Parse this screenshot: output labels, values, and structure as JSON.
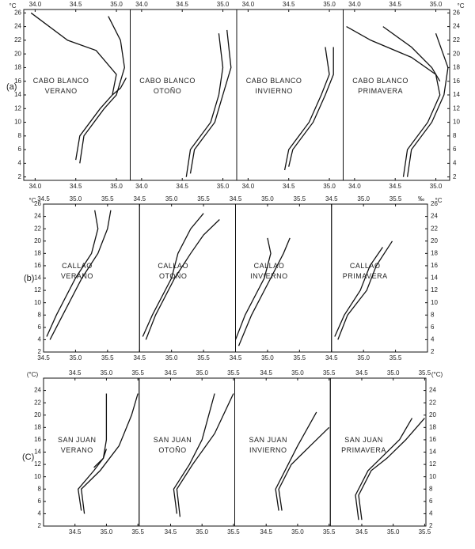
{
  "row_labels": [
    "(a)",
    "(b)",
    "(C)"
  ],
  "chart_data": [
    {
      "type": "line",
      "title": "CABO BLANCO",
      "subtitle": "VERANO",
      "ylabel": "°C",
      "xlim": [
        33.86,
        35.17
      ],
      "ylim": [
        1.5,
        26.5
      ],
      "xticks": [
        {
          "value": 34,
          "label": "34.0"
        },
        34.5,
        {
          "value": 35,
          "label": "35.0"
        }
      ],
      "yticks": [
        2,
        4,
        6,
        8,
        10,
        12,
        14,
        16,
        18,
        20,
        22,
        24,
        26
      ],
      "series": [
        {
          "color": "#111",
          "x": [
            34.5,
            34.55,
            34.8,
            34.95,
            35.0,
            34.75,
            34.4,
            33.95
          ],
          "values": [
            4.5,
            8,
            12,
            14,
            17,
            20.5,
            22,
            26
          ]
        },
        {
          "color": "#111",
          "x": [
            34.55,
            34.6,
            34.85,
            35.0,
            35.1,
            35.05,
            34.9
          ],
          "values": [
            4,
            8,
            12,
            14,
            18,
            22,
            25.5
          ]
        },
        {
          "color": "#111",
          "x": [
            34.95,
            35.05,
            35.12
          ],
          "values": [
            14,
            15,
            16.5
          ]
        }
      ]
    },
    {
      "type": "line",
      "title": "CABO BLANCO",
      "subtitle": "OTOÑO",
      "xlim": [
        33.86,
        35.17
      ],
      "ylim": [
        1.5,
        26.5
      ],
      "xticks": [
        {
          "value": 34,
          "label": "34.0"
        },
        34.5,
        {
          "value": 35,
          "label": "35.0"
        }
      ],
      "series": [
        {
          "color": "#111",
          "x": [
            34.55,
            34.6,
            34.85,
            34.95,
            35.0,
            34.95
          ],
          "values": [
            2,
            6,
            10,
            14,
            18,
            23
          ]
        },
        {
          "color": "#111",
          "x": [
            34.6,
            34.65,
            34.9,
            35.0,
            35.1,
            35.05
          ],
          "values": [
            2.5,
            6,
            10,
            14,
            18,
            23.5
          ]
        }
      ]
    },
    {
      "type": "line",
      "title": "CABO BLANCO",
      "subtitle": "INVIERNO",
      "xlim": [
        33.86,
        35.17
      ],
      "ylim": [
        1.5,
        26.5
      ],
      "xticks": [
        {
          "value": 34,
          "label": "34.0"
        },
        34.5,
        {
          "value": 35,
          "label": "35.0"
        }
      ],
      "series": [
        {
          "color": "#111",
          "x": [
            34.45,
            34.5,
            34.75,
            34.9,
            35.0,
            34.95
          ],
          "values": [
            3,
            6,
            10,
            14,
            17,
            21
          ]
        },
        {
          "color": "#111",
          "x": [
            34.5,
            34.55,
            34.8,
            34.95,
            35.05,
            35.05
          ],
          "values": [
            3.5,
            6,
            10,
            14,
            17,
            21
          ]
        }
      ]
    },
    {
      "type": "line",
      "title": "CABO BLANCO",
      "subtitle": "PRIMAVERA",
      "ylabel": "°C",
      "xlim": [
        33.86,
        35.17
      ],
      "ylim": [
        1.5,
        26.5
      ],
      "xticks": [
        {
          "value": 34,
          "label": "34.0"
        },
        34.5,
        {
          "value": 35,
          "label": "35.0"
        }
      ],
      "yticks": [
        2,
        4,
        6,
        8,
        10,
        12,
        14,
        16,
        18,
        20,
        22,
        24,
        26
      ],
      "series": [
        {
          "color": "#111",
          "x": [
            34.6,
            34.65,
            34.9,
            35.05,
            35.0,
            34.7,
            34.2,
            33.9
          ],
          "values": [
            2,
            6,
            10,
            14,
            17,
            19.5,
            22,
            24
          ]
        },
        {
          "color": "#111",
          "x": [
            34.65,
            34.7,
            34.95,
            35.1,
            35.15,
            35.0
          ],
          "values": [
            2,
            6,
            10,
            14,
            18,
            23
          ]
        },
        {
          "color": "#111",
          "x": [
            34.35,
            34.7,
            34.95,
            35.05
          ],
          "values": [
            24,
            21,
            18,
            16
          ]
        }
      ]
    },
    {
      "type": "line",
      "title": "CALLAO",
      "subtitle": "VERANO",
      "ylabel": "°C",
      "xlim": [
        34.5,
        36.0
      ],
      "ylim": [
        2,
        26
      ],
      "xticks": [
        34.5,
        {
          "value": 35,
          "label": "35.0"
        },
        35.5
      ],
      "yticks": [
        2,
        4,
        6,
        8,
        10,
        12,
        14,
        16,
        18,
        20,
        22,
        24,
        26
      ],
      "series": [
        {
          "color": "#111",
          "x": [
            34.55,
            34.7,
            35.0,
            35.25,
            35.35,
            35.3
          ],
          "values": [
            4.5,
            8,
            14,
            18,
            22,
            25
          ]
        },
        {
          "color": "#111",
          "x": [
            34.6,
            34.8,
            35.1,
            35.35,
            35.5,
            35.55
          ],
          "values": [
            4,
            8,
            14,
            18,
            22,
            25
          ]
        }
      ]
    },
    {
      "type": "line",
      "title": "CALLAO",
      "subtitle": "OTOÑO",
      "xlim": [
        34.5,
        36.0
      ],
      "ylim": [
        2,
        26
      ],
      "xticks": [
        34.5,
        {
          "value": 35,
          "label": "35.0"
        },
        35.5
      ],
      "series": [
        {
          "color": "#111",
          "x": [
            34.55,
            34.7,
            35.0,
            35.1,
            35.3,
            35.5
          ],
          "values": [
            4.5,
            8,
            14,
            18,
            22,
            24.5
          ]
        },
        {
          "color": "#111",
          "x": [
            34.6,
            34.75,
            35.05,
            35.3,
            35.5,
            35.75
          ],
          "values": [
            4,
            8,
            14,
            18,
            21,
            23.5
          ]
        }
      ]
    },
    {
      "type": "line",
      "title": "CALLAO",
      "subtitle": "INVIERNO",
      "xlim": [
        34.5,
        36.0
      ],
      "ylim": [
        2,
        26
      ],
      "xticks": [
        34.5,
        {
          "value": 35,
          "label": "35.0"
        },
        35.5
      ],
      "series": [
        {
          "color": "#111",
          "x": [
            34.5,
            34.65,
            34.95,
            35.05,
            35.0
          ],
          "values": [
            4,
            8,
            14,
            18,
            20.5
          ]
        },
        {
          "color": "#111",
          "x": [
            34.55,
            34.75,
            35.05,
            35.25,
            35.35
          ],
          "values": [
            3,
            8,
            14,
            18,
            20.5
          ]
        }
      ]
    },
    {
      "type": "line",
      "title": "CALLAO",
      "subtitle": "PRIMAVERA",
      "ylabel": "°C",
      "xlabel": "‰",
      "xlim": [
        34.5,
        36.0
      ],
      "ylim": [
        2,
        26
      ],
      "xticks": [
        34.5,
        {
          "value": 35,
          "label": "35.0"
        },
        35.5
      ],
      "yticks": [
        2,
        4,
        6,
        8,
        10,
        12,
        14,
        16,
        18,
        20,
        22,
        24,
        26
      ],
      "series": [
        {
          "color": "#111",
          "x": [
            34.55,
            34.7,
            34.95,
            35.1,
            35.3
          ],
          "values": [
            4.5,
            8,
            12,
            16,
            19
          ]
        },
        {
          "color": "#111",
          "x": [
            34.6,
            34.75,
            35.05,
            35.2,
            35.45
          ],
          "values": [
            4,
            8,
            12,
            16,
            20
          ]
        }
      ]
    },
    {
      "type": "line",
      "title": "SAN JUAN",
      "subtitle": "VERANO",
      "ylabel": "(°C)",
      "xlim": [
        34.0,
        35.52
      ],
      "ylim": [
        2,
        26
      ],
      "xticks": [
        34.5,
        {
          "value": 35,
          "label": "35.0"
        },
        35.5
      ],
      "yticks": [
        2,
        4,
        6,
        8,
        10,
        12,
        14,
        16,
        18,
        20,
        22,
        24
      ],
      "series": [
        {
          "color": "#111",
          "x": [
            34.6,
            34.55,
            34.8,
            34.95,
            35.0,
            35.0
          ],
          "values": [
            4.5,
            8,
            11,
            13,
            16,
            23.5
          ]
        },
        {
          "color": "#111",
          "x": [
            34.65,
            34.6,
            34.9,
            35.2,
            35.4,
            35.5
          ],
          "values": [
            4,
            8,
            11,
            15,
            20,
            23.5
          ]
        },
        {
          "color": "#111",
          "x": [
            34.8,
            34.95,
            35.0
          ],
          "values": [
            11.5,
            13,
            14.5
          ]
        }
      ]
    },
    {
      "type": "line",
      "title": "SAN JUAN",
      "subtitle": "OTOÑO",
      "xlim": [
        34.0,
        35.52
      ],
      "ylim": [
        2,
        26
      ],
      "xticks": [
        34.5,
        {
          "value": 35,
          "label": "35.0"
        },
        35.5
      ],
      "series": [
        {
          "color": "#111",
          "x": [
            34.6,
            34.55,
            34.8,
            35.0,
            35.2
          ],
          "values": [
            4,
            8,
            12,
            16,
            23.5
          ]
        },
        {
          "color": "#111",
          "x": [
            34.65,
            34.6,
            34.85,
            35.2,
            35.5
          ],
          "values": [
            3.5,
            8,
            12,
            17,
            23.5
          ]
        }
      ]
    },
    {
      "type": "line",
      "title": "SAN JUAN",
      "subtitle": "INVIERNO",
      "xlim": [
        34.0,
        35.52
      ],
      "ylim": [
        2,
        26
      ],
      "xticks": [
        34.5,
        {
          "value": 35,
          "label": "35.0"
        },
        35.5
      ],
      "series": [
        {
          "color": "#111",
          "x": [
            34.7,
            34.65,
            34.85,
            35.0,
            35.3
          ],
          "values": [
            4.5,
            8,
            12,
            15,
            20.5
          ]
        },
        {
          "color": "#111",
          "x": [
            34.75,
            34.7,
            34.9,
            35.2,
            35.5
          ],
          "values": [
            4.5,
            8,
            12,
            15,
            18
          ]
        }
      ]
    },
    {
      "type": "line",
      "title": "SAN JUAN",
      "subtitle": "PRIMAVERA",
      "ylabel": "(°C)",
      "xlim": [
        34.0,
        35.52
      ],
      "ylim": [
        2,
        26
      ],
      "xticks": [
        34.5,
        {
          "value": 35,
          "label": "35.0"
        },
        35.5
      ],
      "yticks": [
        2,
        4,
        6,
        8,
        10,
        12,
        14,
        16,
        18,
        20,
        22,
        24
      ],
      "series": [
        {
          "color": "#111",
          "x": [
            34.45,
            34.4,
            34.6,
            34.8,
            35.1,
            35.3
          ],
          "values": [
            3,
            7,
            11,
            13,
            16,
            19.5
          ]
        },
        {
          "color": "#111",
          "x": [
            34.5,
            34.45,
            34.65,
            34.9,
            35.2,
            35.5
          ],
          "values": [
            3,
            7,
            11,
            13,
            16,
            19.5
          ]
        }
      ]
    }
  ]
}
